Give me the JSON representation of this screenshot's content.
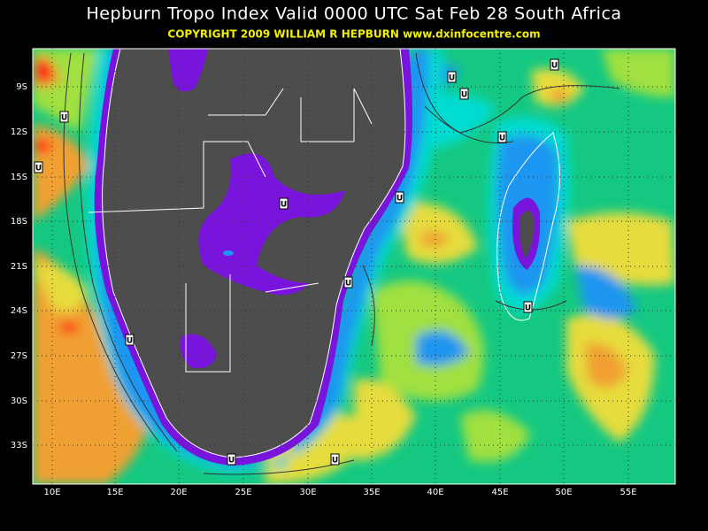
{
  "title": "Hepburn Tropo Index Valid 0000 UTC Sat Feb 28 South Africa",
  "copyright": "COPYRIGHT 2009   WILLIAM R HEPBURN   www.dxinfocentre.com",
  "lat_labels": [
    "9S",
    "12S",
    "15S",
    "18S",
    "21S",
    "24S",
    "27S",
    "30S",
    "33S"
  ],
  "lon_labels": [
    "10E",
    "15E",
    "20E",
    "25E",
    "30E",
    "35E",
    "40E",
    "45E",
    "50E",
    "55E"
  ],
  "markers": [
    "U",
    "U",
    "U",
    "U",
    "U",
    "U",
    "U",
    "U",
    "U",
    "U",
    "U",
    "U",
    "U"
  ]
}
